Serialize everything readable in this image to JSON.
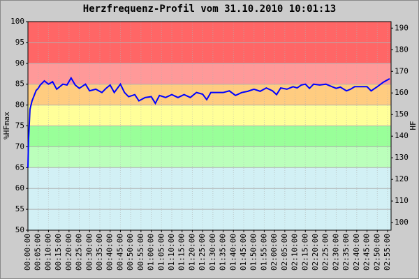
{
  "chart_data": {
    "type": "line",
    "title": "Herzfrequenz-Profil vom 31.10.2010 10:01:13",
    "y_label": "%HFmax",
    "y2_label": "HF",
    "xlim": [
      0,
      176.7
    ],
    "ylim": [
      50,
      100
    ],
    "y2lim": [
      96.5,
      193
    ],
    "yticks": [
      50,
      55,
      60,
      65,
      70,
      75,
      80,
      85,
      90,
      95,
      100
    ],
    "y2ticks": [
      100,
      110,
      120,
      130,
      140,
      150,
      160,
      170,
      180,
      190
    ],
    "xticks": [
      {
        "value": 0,
        "label": "00:00:00"
      },
      {
        "value": 5,
        "label": "00:05:00"
      },
      {
        "value": 10,
        "label": "00:10:00"
      },
      {
        "value": 15,
        "label": "00:15:00"
      },
      {
        "value": 20,
        "label": "00:20:00"
      },
      {
        "value": 25,
        "label": "00:25:00"
      },
      {
        "value": 30,
        "label": "00:30:00"
      },
      {
        "value": 35,
        "label": "00:35:00"
      },
      {
        "value": 40,
        "label": "00:40:00"
      },
      {
        "value": 45,
        "label": "00:45:00"
      },
      {
        "value": 50,
        "label": "00:50:00"
      },
      {
        "value": 55,
        "label": "00:55:00"
      },
      {
        "value": 60,
        "label": "01:00:00"
      },
      {
        "value": 65,
        "label": "01:05:00"
      },
      {
        "value": 70,
        "label": "01:10:00"
      },
      {
        "value": 75,
        "label": "01:15:00"
      },
      {
        "value": 80,
        "label": "01:20:00"
      },
      {
        "value": 85,
        "label": "01:25:00"
      },
      {
        "value": 90,
        "label": "01:30:00"
      },
      {
        "value": 95,
        "label": "01:35:00"
      },
      {
        "value": 100,
        "label": "01:40:00"
      },
      {
        "value": 105,
        "label": "01:45:00"
      },
      {
        "value": 110,
        "label": "01:50:00"
      },
      {
        "value": 115,
        "label": "01:55:00"
      },
      {
        "value": 120,
        "label": "02:00:00"
      },
      {
        "value": 125,
        "label": "02:05:00"
      },
      {
        "value": 130,
        "label": "02:10:00"
      },
      {
        "value": 135,
        "label": "02:15:00"
      },
      {
        "value": 140,
        "label": "02:20:00"
      },
      {
        "value": 145,
        "label": "02:25:00"
      },
      {
        "value": 150,
        "label": "02:30:00"
      },
      {
        "value": 155,
        "label": "02:35:00"
      },
      {
        "value": 160,
        "label": "02:40:00"
      },
      {
        "value": 165,
        "label": "02:45:00"
      },
      {
        "value": 170,
        "label": "02:50:00"
      },
      {
        "value": 175,
        "label": "02:55:00"
      }
    ],
    "zones": [
      {
        "from": 50,
        "to": 65,
        "color": "#d2f0f5"
      },
      {
        "from": 65,
        "to": 70,
        "color": "#bbffbb"
      },
      {
        "from": 70,
        "to": 75,
        "color": "#99ff99"
      },
      {
        "from": 75,
        "to": 80,
        "color": "#ffff99"
      },
      {
        "from": 80,
        "to": 85,
        "color": "#ffcc80"
      },
      {
        "from": 85,
        "to": 90,
        "color": "#ff9999"
      },
      {
        "from": 90,
        "to": 100,
        "color": "#ff6666"
      }
    ],
    "grid": true,
    "x": [
      0,
      0.3,
      1,
      2,
      4,
      5,
      6,
      8,
      10,
      12,
      14,
      17,
      19,
      21,
      23,
      25,
      28,
      30,
      33,
      36,
      38,
      40,
      42,
      45,
      47,
      49,
      52,
      54,
      57,
      60,
      62,
      64,
      67,
      70,
      73,
      76,
      79,
      82,
      85,
      87,
      89,
      92,
      95,
      98,
      101,
      104,
      107,
      110,
      113,
      116,
      119,
      121,
      123,
      126,
      129,
      131,
      133,
      135,
      137,
      139,
      142,
      145,
      148,
      150,
      152,
      155,
      157,
      159,
      162,
      165,
      167,
      170,
      173,
      176
    ],
    "series": [
      {
        "color": "#0000ff",
        "values": [
          65,
          71.7,
          79,
          81,
          83.5,
          84,
          84.8,
          85.8,
          85,
          85.6,
          83.8,
          85,
          84.8,
          86.5,
          84.8,
          84,
          85,
          83.4,
          83.8,
          83,
          84,
          84.8,
          83,
          85,
          83,
          82,
          82.5,
          81,
          81.8,
          82,
          80.4,
          82.3,
          81.8,
          82.5,
          81.8,
          82.5,
          81.8,
          83,
          82.6,
          81.3,
          83,
          83,
          83,
          83.4,
          82.3,
          83,
          83.3,
          83.8,
          83.3,
          84.1,
          83.4,
          82.5,
          84.1,
          83.8,
          84.4,
          84.1,
          84.8,
          85,
          84,
          85,
          84.8,
          85,
          84.4,
          84,
          84.3,
          83.4,
          83.8,
          84.4,
          84.4,
          84.4,
          83.4,
          84.4,
          85.5,
          86.3
        ]
      }
    ]
  }
}
